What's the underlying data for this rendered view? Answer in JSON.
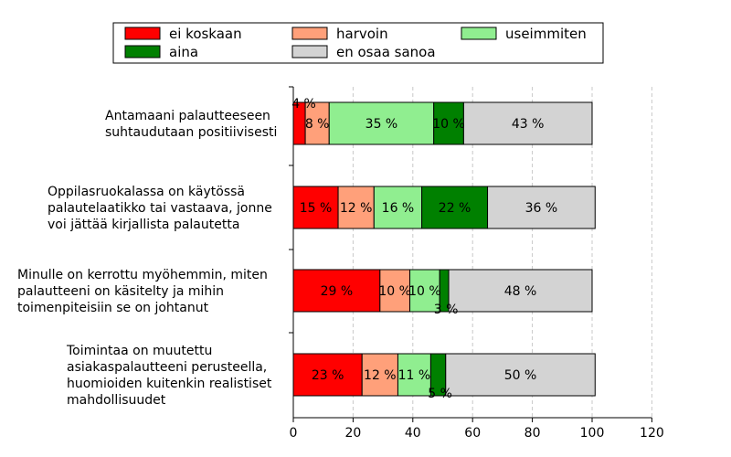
{
  "chart_data": {
    "type": "bar",
    "orientation": "horizontal",
    "stacked": true,
    "categories": [
      [
        "Antamaani palautteeseen",
        "suhtaudutaan positiivisesti"
      ],
      [
        "Oppilasruokalassa on käytössä",
        "palautelaatikko tai vastaava, jonne",
        "voi jättää kirjallista palautetta"
      ],
      [
        "Minulle on kerrottu myöhemmin, miten",
        "palautteeni on käsitelty ja mihin",
        "toimenpiteisiin se on johtanut"
      ],
      [
        "Toimintaa on muutettu",
        "asiakaspalautteeni perusteella,",
        "huomioiden kuitenkin realistiset",
        "mahdollisuudet"
      ]
    ],
    "series": [
      {
        "name": "ei koskaan",
        "color": "#ff0000",
        "values": [
          4,
          15,
          29,
          23
        ],
        "labels": [
          "4 %",
          "15 %",
          "29 %",
          "23 %"
        ]
      },
      {
        "name": "harvoin",
        "color": "#ffa07a",
        "values": [
          8,
          12,
          10,
          12
        ],
        "labels": [
          "8 %",
          "12 %",
          "10 %",
          "12 %"
        ]
      },
      {
        "name": "useimmiten",
        "color": "#90ee90",
        "values": [
          35,
          16,
          10,
          11
        ],
        "labels": [
          "35 %",
          "16 %",
          "10 %",
          "11 %"
        ]
      },
      {
        "name": "aina",
        "color": "#008000",
        "values": [
          10,
          22,
          3,
          5
        ],
        "labels": [
          "10 %",
          "22 %",
          "3 %",
          "5 %"
        ]
      },
      {
        "name": "en osaa sanoa",
        "color": "#d3d3d3",
        "values": [
          43,
          36,
          48,
          50
        ],
        "labels": [
          "43 %",
          "36 %",
          "48 %",
          "50 %"
        ]
      }
    ],
    "xlim": [
      0,
      120
    ],
    "xticks": [
      "0",
      "20",
      "40",
      "60",
      "80",
      "100",
      "120"
    ],
    "grid": "vertical dashed",
    "legend_position": "top"
  }
}
